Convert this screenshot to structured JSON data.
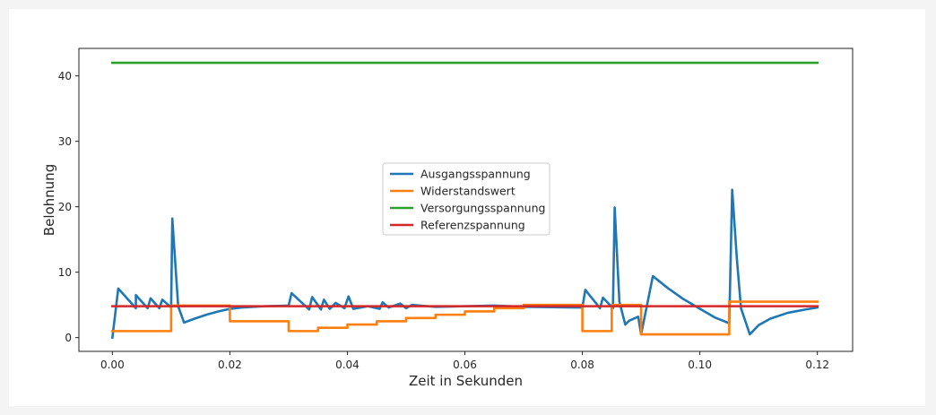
{
  "chart_data": {
    "type": "line",
    "title": "",
    "xlabel": "Zeit in Sekunden",
    "ylabel": "Belohnung",
    "xlim": [
      -0.0057,
      0.126
    ],
    "ylim": [
      -2.1,
      44.2
    ],
    "x_ticks": [
      0.0,
      0.02,
      0.04,
      0.06,
      0.08,
      0.1,
      0.12
    ],
    "x_tick_labels": [
      "0.00",
      "0.02",
      "0.04",
      "0.06",
      "0.08",
      "0.10",
      "0.12"
    ],
    "y_ticks": [
      0,
      10,
      20,
      30,
      40
    ],
    "y_tick_labels": [
      "0",
      "10",
      "20",
      "30",
      "40"
    ],
    "grid": false,
    "legend_position": "center",
    "series": [
      {
        "name": "Ausgangsspannung",
        "color": "#1f77b4",
        "points": [
          [
            0.0,
            0.0
          ],
          [
            0.001,
            7.5
          ],
          [
            0.004,
            4.5
          ],
          [
            0.004,
            6.5
          ],
          [
            0.006,
            4.5
          ],
          [
            0.0065,
            6.0
          ],
          [
            0.008,
            4.5
          ],
          [
            0.0085,
            5.8
          ],
          [
            0.01,
            4.6
          ],
          [
            0.0102,
            18.2
          ],
          [
            0.0112,
            4.8
          ],
          [
            0.0122,
            2.3
          ],
          [
            0.014,
            2.9
          ],
          [
            0.016,
            3.5
          ],
          [
            0.018,
            4.0
          ],
          [
            0.02,
            4.4
          ],
          [
            0.022,
            4.6
          ],
          [
            0.024,
            4.7
          ],
          [
            0.026,
            4.8
          ],
          [
            0.03,
            4.9
          ],
          [
            0.0305,
            6.8
          ],
          [
            0.0335,
            4.3
          ],
          [
            0.034,
            6.2
          ],
          [
            0.0355,
            4.3
          ],
          [
            0.036,
            5.8
          ],
          [
            0.037,
            4.4
          ],
          [
            0.038,
            5.3
          ],
          [
            0.0395,
            4.5
          ],
          [
            0.0402,
            6.3
          ],
          [
            0.041,
            4.4
          ],
          [
            0.0435,
            4.8
          ],
          [
            0.0455,
            4.4
          ],
          [
            0.046,
            5.4
          ],
          [
            0.047,
            4.6
          ],
          [
            0.049,
            5.2
          ],
          [
            0.05,
            4.5
          ],
          [
            0.051,
            5.0
          ],
          [
            0.055,
            4.7
          ],
          [
            0.06,
            4.8
          ],
          [
            0.065,
            4.9
          ],
          [
            0.07,
            4.7
          ],
          [
            0.08,
            4.6
          ],
          [
            0.0805,
            7.3
          ],
          [
            0.083,
            4.5
          ],
          [
            0.0835,
            6.1
          ],
          [
            0.0852,
            4.5
          ],
          [
            0.0855,
            19.9
          ],
          [
            0.0863,
            5.5
          ],
          [
            0.0873,
            2.0
          ],
          [
            0.088,
            2.6
          ],
          [
            0.0895,
            3.2
          ],
          [
            0.09,
            0.5
          ],
          [
            0.092,
            9.4
          ],
          [
            0.0945,
            7.6
          ],
          [
            0.097,
            6.0
          ],
          [
            0.1,
            4.4
          ],
          [
            0.1025,
            3.1
          ],
          [
            0.105,
            2.2
          ],
          [
            0.1055,
            22.6
          ],
          [
            0.1063,
            12.0
          ],
          [
            0.107,
            4.5
          ],
          [
            0.1085,
            0.5
          ],
          [
            0.11,
            1.9
          ],
          [
            0.112,
            2.9
          ],
          [
            0.115,
            3.8
          ],
          [
            0.118,
            4.3
          ],
          [
            0.12,
            4.6
          ]
        ]
      },
      {
        "name": "Widerstandswert",
        "color": "#ff7f0e",
        "points": [
          [
            0.0,
            1.0
          ],
          [
            0.01,
            1.0
          ],
          [
            0.01,
            4.9
          ],
          [
            0.02,
            4.9
          ],
          [
            0.02,
            2.5
          ],
          [
            0.03,
            2.5
          ],
          [
            0.03,
            1.0
          ],
          [
            0.035,
            1.0
          ],
          [
            0.035,
            1.5
          ],
          [
            0.04,
            1.5
          ],
          [
            0.04,
            2.0
          ],
          [
            0.045,
            2.0
          ],
          [
            0.045,
            2.5
          ],
          [
            0.05,
            2.5
          ],
          [
            0.05,
            3.0
          ],
          [
            0.055,
            3.0
          ],
          [
            0.055,
            3.5
          ],
          [
            0.06,
            3.5
          ],
          [
            0.06,
            4.0
          ],
          [
            0.065,
            4.0
          ],
          [
            0.065,
            4.5
          ],
          [
            0.07,
            4.5
          ],
          [
            0.07,
            5.0
          ],
          [
            0.08,
            5.0
          ],
          [
            0.08,
            1.0
          ],
          [
            0.085,
            1.0
          ],
          [
            0.085,
            5.0
          ],
          [
            0.09,
            5.0
          ],
          [
            0.09,
            0.5
          ],
          [
            0.105,
            0.5
          ],
          [
            0.105,
            5.5
          ],
          [
            0.12,
            5.5
          ]
        ]
      },
      {
        "name": "Versorgungsspannung",
        "color": "#2ca02c",
        "points": [
          [
            0.0,
            42.0
          ],
          [
            0.12,
            42.0
          ]
        ]
      },
      {
        "name": "Referenzspannung",
        "color": "#d62728",
        "points": [
          [
            0.0,
            4.8
          ],
          [
            0.12,
            4.8
          ]
        ]
      }
    ]
  }
}
